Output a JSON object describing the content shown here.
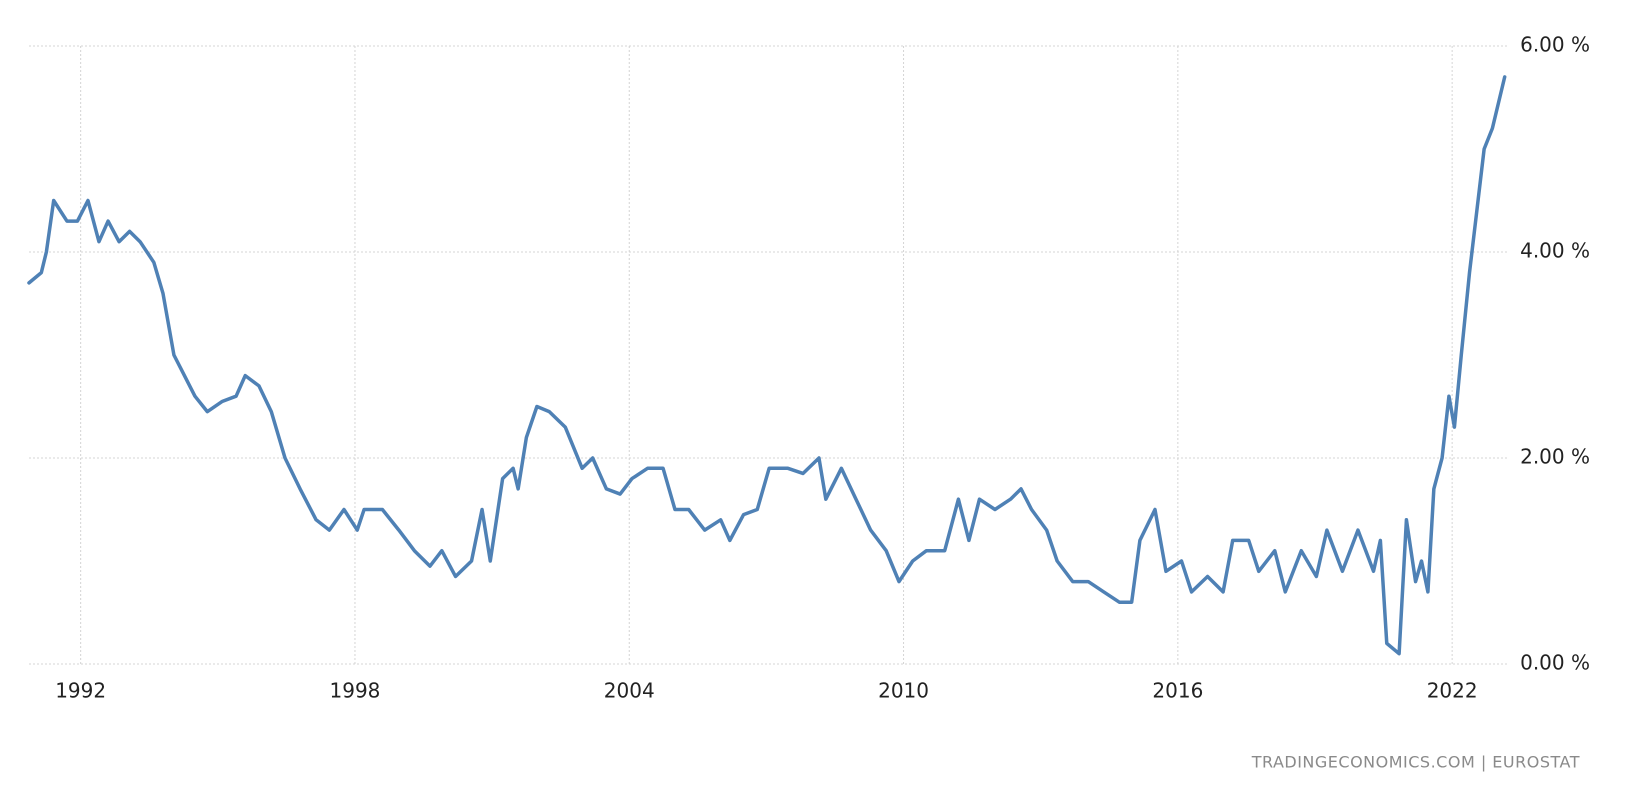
{
  "chart_data": {
    "type": "line",
    "source": "TRADINGECONOMICS.COM | EUROSTAT",
    "color": "#4f81b5",
    "grid": true,
    "xlim": [
      1990.87,
      2023.2
    ],
    "xticks": [
      1992,
      1998,
      2004,
      2010,
      2016,
      2022
    ],
    "ylim": [
      0,
      6
    ],
    "yticks": [
      {
        "value": 0,
        "label": "0.00 %"
      },
      {
        "value": 2,
        "label": "2.00 %"
      },
      {
        "value": 4,
        "label": "4.00 %"
      },
      {
        "value": 6,
        "label": "6.00 %"
      }
    ],
    "x": [
      1990.87,
      1991.14,
      1991.25,
      1991.41,
      1991.7,
      1991.93,
      1992.16,
      1992.4,
      1992.6,
      1992.84,
      1993.07,
      1993.3,
      1993.6,
      1993.8,
      1994.04,
      1994.27,
      1994.5,
      1994.77,
      1995.1,
      1995.4,
      1995.6,
      1995.9,
      1996.17,
      1996.47,
      1996.8,
      1997.15,
      1997.44,
      1997.76,
      1998.05,
      1998.2,
      1998.6,
      1998.96,
      1999.3,
      1999.64,
      1999.9,
      2000.2,
      2000.55,
      2000.78,
      2000.96,
      2001.23,
      2001.46,
      2001.57,
      2001.75,
      2001.98,
      2002.25,
      2002.6,
      2002.97,
      2003.2,
      2003.5,
      2003.8,
      2004.06,
      2004.4,
      2004.74,
      2005.0,
      2005.3,
      2005.65,
      2006.0,
      2006.2,
      2006.5,
      2006.8,
      2007.06,
      2007.47,
      2007.8,
      2008.15,
      2008.3,
      2008.64,
      2008.96,
      2009.28,
      2009.62,
      2009.9,
      2010.2,
      2010.5,
      2010.9,
      2011.2,
      2011.43,
      2011.66,
      2012.0,
      2012.34,
      2012.57,
      2012.8,
      2013.13,
      2013.36,
      2013.7,
      2014.04,
      2014.38,
      2014.72,
      2014.99,
      2015.17,
      2015.5,
      2015.74,
      2016.08,
      2016.3,
      2016.65,
      2016.99,
      2017.2,
      2017.55,
      2017.77,
      2018.12,
      2018.35,
      2018.7,
      2019.03,
      2019.26,
      2019.6,
      2019.94,
      2020.28,
      2020.43,
      2020.57,
      2020.84,
      2021.0,
      2021.2,
      2021.33,
      2021.47,
      2021.6,
      2021.78,
      2021.93,
      2022.05,
      2022.2,
      2022.38,
      2022.54,
      2022.7,
      2022.88,
      2023.15
    ],
    "values": [
      3.7,
      3.8,
      4.0,
      4.5,
      4.3,
      4.3,
      4.5,
      4.1,
      4.3,
      4.1,
      4.2,
      4.1,
      3.9,
      3.6,
      3.0,
      2.8,
      2.6,
      2.45,
      2.55,
      2.6,
      2.8,
      2.7,
      2.45,
      2.0,
      1.7,
      1.4,
      1.3,
      1.5,
      1.3,
      1.5,
      1.5,
      1.3,
      1.1,
      0.95,
      1.1,
      0.85,
      1.0,
      1.5,
      1.0,
      1.8,
      1.9,
      1.7,
      2.2,
      2.5,
      2.45,
      2.3,
      1.9,
      2.0,
      1.7,
      1.65,
      1.8,
      1.9,
      1.9,
      1.5,
      1.5,
      1.3,
      1.4,
      1.2,
      1.45,
      1.5,
      1.9,
      1.9,
      1.85,
      2.0,
      1.6,
      1.9,
      1.6,
      1.3,
      1.1,
      0.8,
      1.0,
      1.1,
      1.1,
      1.6,
      1.2,
      1.6,
      1.5,
      1.6,
      1.7,
      1.5,
      1.3,
      1.0,
      0.8,
      0.8,
      0.7,
      0.6,
      0.6,
      1.2,
      1.5,
      0.9,
      1.0,
      0.7,
      0.85,
      0.7,
      1.2,
      1.2,
      0.9,
      1.1,
      0.7,
      1.1,
      0.85,
      1.3,
      0.9,
      1.3,
      0.9,
      1.2,
      0.2,
      0.1,
      1.4,
      0.8,
      1.0,
      0.7,
      1.7,
      2.0,
      2.6,
      2.3,
      3.0,
      3.8,
      4.4,
      5.0,
      5.2,
      5.7
    ]
  }
}
